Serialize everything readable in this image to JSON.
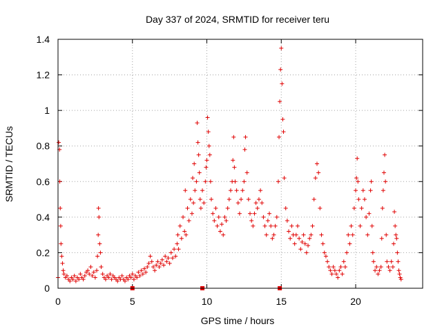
{
  "chart_data": {
    "type": "scatter",
    "title": "Day 337 of 2024, SRMTID for receiver teru",
    "xlabel": "GPS time / hours",
    "ylabel": "SRMTID / TECUs",
    "xlim": [
      0,
      24.5
    ],
    "ylim": [
      0,
      1.4
    ],
    "xticks": [
      0,
      5,
      10,
      15,
      20
    ],
    "yticks": [
      0,
      0.2,
      0.4,
      0.6,
      0.8,
      1,
      1.2,
      1.4
    ],
    "ytick_labels": [
      "0",
      "0.2",
      "0.4",
      "0.6",
      "0.8",
      "1",
      "1.2",
      "1.4"
    ],
    "grid": true,
    "marker": "plus",
    "color": "#e00000",
    "series": [
      {
        "name": "SRMTID",
        "points": [
          [
            0.0,
            0.06
          ],
          [
            0.05,
            0.82
          ],
          [
            0.1,
            0.78
          ],
          [
            0.12,
            0.6
          ],
          [
            0.15,
            0.45
          ],
          [
            0.18,
            0.35
          ],
          [
            0.2,
            0.25
          ],
          [
            0.25,
            0.18
          ],
          [
            0.3,
            0.14
          ],
          [
            0.35,
            0.1
          ],
          [
            0.4,
            0.08
          ],
          [
            0.5,
            0.06
          ],
          [
            0.6,
            0.07
          ],
          [
            0.7,
            0.05
          ],
          [
            0.8,
            0.04
          ],
          [
            0.9,
            0.06
          ],
          [
            1.0,
            0.05
          ],
          [
            1.1,
            0.07
          ],
          [
            1.2,
            0.04
          ],
          [
            1.3,
            0.06
          ],
          [
            1.4,
            0.05
          ],
          [
            1.5,
            0.08
          ],
          [
            1.6,
            0.06
          ],
          [
            1.7,
            0.05
          ],
          [
            1.8,
            0.07
          ],
          [
            1.9,
            0.09
          ],
          [
            2.0,
            0.1
          ],
          [
            2.1,
            0.08
          ],
          [
            2.2,
            0.12
          ],
          [
            2.3,
            0.07
          ],
          [
            2.4,
            0.09
          ],
          [
            2.5,
            0.06
          ],
          [
            2.6,
            0.1
          ],
          [
            2.65,
            0.18
          ],
          [
            2.7,
            0.3
          ],
          [
            2.72,
            0.45
          ],
          [
            2.75,
            0.4
          ],
          [
            2.8,
            0.25
          ],
          [
            2.85,
            0.2
          ],
          [
            2.9,
            0.12
          ],
          [
            3.0,
            0.08
          ],
          [
            3.1,
            0.06
          ],
          [
            3.2,
            0.05
          ],
          [
            3.3,
            0.07
          ],
          [
            3.4,
            0.06
          ],
          [
            3.5,
            0.08
          ],
          [
            3.6,
            0.05
          ],
          [
            3.7,
            0.07
          ],
          [
            3.8,
            0.06
          ],
          [
            3.9,
            0.05
          ],
          [
            4.0,
            0.04
          ],
          [
            4.1,
            0.06
          ],
          [
            4.2,
            0.05
          ],
          [
            4.3,
            0.07
          ],
          [
            4.4,
            0.05
          ],
          [
            4.5,
            0.04
          ],
          [
            4.6,
            0.06
          ],
          [
            4.7,
            0.05
          ],
          [
            4.8,
            0.07
          ],
          [
            4.9,
            0.06
          ],
          [
            5.0,
            0.08
          ],
          [
            5.1,
            0.05
          ],
          [
            5.2,
            0.07
          ],
          [
            5.3,
            0.06
          ],
          [
            5.4,
            0.09
          ],
          [
            5.5,
            0.07
          ],
          [
            5.6,
            0.1
          ],
          [
            5.7,
            0.08
          ],
          [
            5.8,
            0.11
          ],
          [
            5.9,
            0.09
          ],
          [
            6.0,
            0.12
          ],
          [
            6.1,
            0.14
          ],
          [
            6.2,
            0.18
          ],
          [
            6.3,
            0.15
          ],
          [
            6.4,
            0.12
          ],
          [
            6.5,
            0.1
          ],
          [
            6.6,
            0.13
          ],
          [
            6.7,
            0.15
          ],
          [
            6.8,
            0.12
          ],
          [
            6.9,
            0.14
          ],
          [
            7.0,
            0.16
          ],
          [
            7.1,
            0.13
          ],
          [
            7.2,
            0.18
          ],
          [
            7.3,
            0.15
          ],
          [
            7.4,
            0.17
          ],
          [
            7.5,
            0.14
          ],
          [
            7.6,
            0.2
          ],
          [
            7.7,
            0.17
          ],
          [
            7.8,
            0.22
          ],
          [
            7.9,
            0.18
          ],
          [
            8.0,
            0.25
          ],
          [
            8.05,
            0.3
          ],
          [
            8.1,
            0.22
          ],
          [
            8.2,
            0.35
          ],
          [
            8.3,
            0.28
          ],
          [
            8.4,
            0.4
          ],
          [
            8.5,
            0.32
          ],
          [
            8.55,
            0.55
          ],
          [
            8.6,
            0.3
          ],
          [
            8.7,
            0.45
          ],
          [
            8.8,
            0.38
          ],
          [
            8.9,
            0.5
          ],
          [
            9.0,
            0.42
          ],
          [
            9.05,
            0.62
          ],
          [
            9.1,
            0.48
          ],
          [
            9.15,
            0.7
          ],
          [
            9.2,
            0.55
          ],
          [
            9.3,
            0.6
          ],
          [
            9.35,
            0.93
          ],
          [
            9.4,
            0.82
          ],
          [
            9.45,
            0.75
          ],
          [
            9.5,
            0.65
          ],
          [
            9.55,
            0.5
          ],
          [
            9.6,
            0.45
          ],
          [
            9.7,
            0.55
          ],
          [
            9.8,
            0.48
          ],
          [
            9.9,
            0.6
          ],
          [
            9.95,
            0.68
          ],
          [
            10.0,
            0.72
          ],
          [
            10.05,
            0.96
          ],
          [
            10.1,
            0.88
          ],
          [
            10.15,
            0.8
          ],
          [
            10.2,
            0.75
          ],
          [
            10.25,
            0.6
          ],
          [
            10.3,
            0.5
          ],
          [
            10.4,
            0.42
          ],
          [
            10.5,
            0.38
          ],
          [
            10.6,
            0.45
          ],
          [
            10.7,
            0.35
          ],
          [
            10.8,
            0.4
          ],
          [
            10.9,
            0.32
          ],
          [
            11.0,
            0.36
          ],
          [
            11.1,
            0.3
          ],
          [
            11.2,
            0.4
          ],
          [
            11.3,
            0.38
          ],
          [
            11.4,
            0.45
          ],
          [
            11.5,
            0.5
          ],
          [
            11.6,
            0.55
          ],
          [
            11.7,
            0.6
          ],
          [
            11.75,
            0.72
          ],
          [
            11.8,
            0.85
          ],
          [
            11.85,
            0.68
          ],
          [
            11.9,
            0.6
          ],
          [
            12.0,
            0.55
          ],
          [
            12.1,
            0.48
          ],
          [
            12.2,
            0.42
          ],
          [
            12.3,
            0.5
          ],
          [
            12.4,
            0.55
          ],
          [
            12.5,
            0.6
          ],
          [
            12.55,
            0.78
          ],
          [
            12.6,
            0.85
          ],
          [
            12.7,
            0.65
          ],
          [
            12.8,
            0.5
          ],
          [
            12.9,
            0.42
          ],
          [
            13.0,
            0.38
          ],
          [
            13.1,
            0.35
          ],
          [
            13.2,
            0.42
          ],
          [
            13.3,
            0.48
          ],
          [
            13.4,
            0.45
          ],
          [
            13.5,
            0.5
          ],
          [
            13.6,
            0.55
          ],
          [
            13.7,
            0.48
          ],
          [
            13.8,
            0.4
          ],
          [
            13.9,
            0.35
          ],
          [
            14.0,
            0.3
          ],
          [
            14.1,
            0.38
          ],
          [
            14.2,
            0.42
          ],
          [
            14.3,
            0.35
          ],
          [
            14.4,
            0.28
          ],
          [
            14.5,
            0.3
          ],
          [
            14.6,
            0.35
          ],
          [
            14.7,
            0.4
          ],
          [
            14.8,
            0.6
          ],
          [
            14.85,
            0.85
          ],
          [
            14.9,
            1.05
          ],
          [
            14.95,
            1.23
          ],
          [
            15.0,
            1.35
          ],
          [
            15.05,
            1.15
          ],
          [
            15.1,
            0.95
          ],
          [
            15.15,
            0.88
          ],
          [
            15.2,
            0.62
          ],
          [
            15.3,
            0.45
          ],
          [
            15.4,
            0.38
          ],
          [
            15.5,
            0.32
          ],
          [
            15.6,
            0.28
          ],
          [
            15.7,
            0.35
          ],
          [
            15.8,
            0.3
          ],
          [
            15.9,
            0.25
          ],
          [
            16.0,
            0.3
          ],
          [
            16.1,
            0.35
          ],
          [
            16.2,
            0.28
          ],
          [
            16.3,
            0.22
          ],
          [
            16.4,
            0.26
          ],
          [
            16.5,
            0.3
          ],
          [
            16.6,
            0.25
          ],
          [
            16.7,
            0.2
          ],
          [
            16.8,
            0.24
          ],
          [
            16.9,
            0.28
          ],
          [
            17.0,
            0.3
          ],
          [
            17.1,
            0.35
          ],
          [
            17.2,
            0.5
          ],
          [
            17.3,
            0.62
          ],
          [
            17.4,
            0.7
          ],
          [
            17.5,
            0.65
          ],
          [
            17.6,
            0.45
          ],
          [
            17.7,
            0.3
          ],
          [
            17.8,
            0.25
          ],
          [
            17.9,
            0.2
          ],
          [
            18.0,
            0.18
          ],
          [
            18.1,
            0.15
          ],
          [
            18.2,
            0.12
          ],
          [
            18.3,
            0.1
          ],
          [
            18.4,
            0.08
          ],
          [
            18.5,
            0.12
          ],
          [
            18.6,
            0.1
          ],
          [
            18.7,
            0.08
          ],
          [
            18.8,
            0.06
          ],
          [
            18.9,
            0.1
          ],
          [
            19.0,
            0.12
          ],
          [
            19.1,
            0.08
          ],
          [
            19.2,
            0.15
          ],
          [
            19.3,
            0.12
          ],
          [
            19.4,
            0.2
          ],
          [
            19.5,
            0.3
          ],
          [
            19.6,
            0.25
          ],
          [
            19.7,
            0.35
          ],
          [
            19.8,
            0.3
          ],
          [
            19.9,
            0.45
          ],
          [
            20.0,
            0.55
          ],
          [
            20.05,
            0.62
          ],
          [
            20.1,
            0.73
          ],
          [
            20.15,
            0.6
          ],
          [
            20.2,
            0.5
          ],
          [
            20.3,
            0.35
          ],
          [
            20.4,
            0.45
          ],
          [
            20.5,
            0.55
          ],
          [
            20.6,
            0.5
          ],
          [
            20.7,
            0.4
          ],
          [
            20.8,
            0.3
          ],
          [
            20.9,
            0.42
          ],
          [
            21.0,
            0.55
          ],
          [
            21.05,
            0.6
          ],
          [
            21.1,
            0.35
          ],
          [
            21.15,
            0.2
          ],
          [
            21.2,
            0.15
          ],
          [
            21.3,
            0.1
          ],
          [
            21.4,
            0.12
          ],
          [
            21.5,
            0.08
          ],
          [
            21.6,
            0.1
          ],
          [
            21.7,
            0.12
          ],
          [
            21.75,
            0.28
          ],
          [
            21.8,
            0.45
          ],
          [
            21.85,
            0.55
          ],
          [
            21.9,
            0.65
          ],
          [
            21.95,
            0.75
          ],
          [
            22.0,
            0.6
          ],
          [
            22.05,
            0.3
          ],
          [
            22.1,
            0.15
          ],
          [
            22.2,
            0.12
          ],
          [
            22.3,
            0.1
          ],
          [
            22.4,
            0.15
          ],
          [
            22.5,
            0.12
          ],
          [
            22.55,
            0.25
          ],
          [
            22.6,
            0.43
          ],
          [
            22.65,
            0.35
          ],
          [
            22.7,
            0.3
          ],
          [
            22.75,
            0.28
          ],
          [
            22.8,
            0.2
          ],
          [
            22.85,
            0.15
          ],
          [
            22.9,
            0.1
          ],
          [
            22.95,
            0.08
          ],
          [
            23.0,
            0.06
          ],
          [
            23.05,
            0.05
          ]
        ]
      }
    ],
    "baseline_markers_x": [
      5.0,
      9.7,
      14.9
    ]
  }
}
